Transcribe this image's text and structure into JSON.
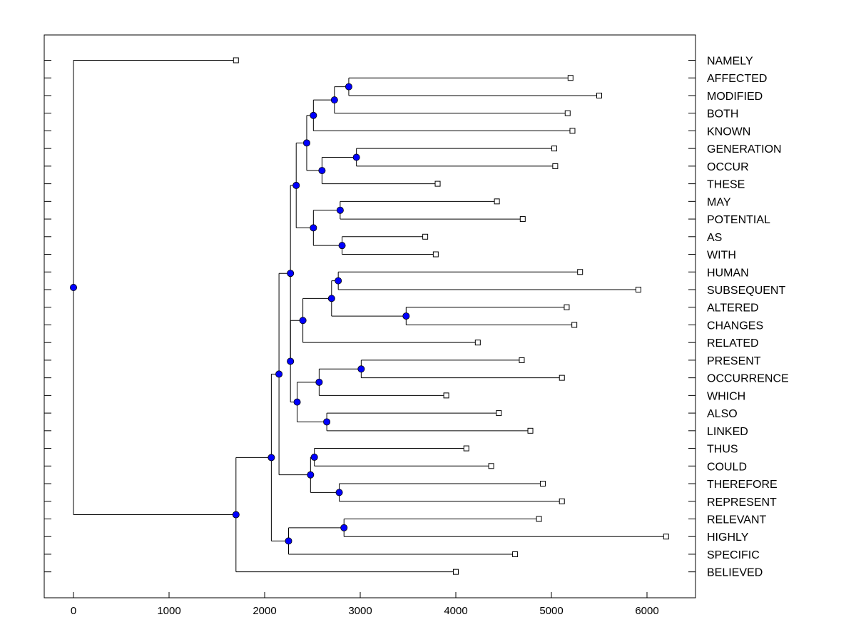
{
  "chart_data": {
    "type": "dendrogram",
    "orientation": "horizontal",
    "x_ticks": [
      0,
      1000,
      2000,
      3000,
      4000,
      5000,
      6000
    ],
    "xlim": [
      -300,
      6500
    ],
    "grid": false,
    "colors": {
      "node": "#0000ff",
      "line": "#000000",
      "leaf_fill": "#ffffff"
    },
    "leaves": [
      {
        "label": "NAMELY",
        "value": 1700
      },
      {
        "label": "AFFECTED",
        "value": 5200
      },
      {
        "label": "MODIFIED",
        "value": 5500
      },
      {
        "label": "BOTH",
        "value": 5170
      },
      {
        "label": "KNOWN",
        "value": 5220
      },
      {
        "label": "GENERATION",
        "value": 5030
      },
      {
        "label": "OCCUR",
        "value": 5040
      },
      {
        "label": "THESE",
        "value": 3810
      },
      {
        "label": "MAY",
        "value": 4430
      },
      {
        "label": "POTENTIAL",
        "value": 4700
      },
      {
        "label": "AS",
        "value": 3680
      },
      {
        "label": "WITH",
        "value": 3790
      },
      {
        "label": "HUMAN",
        "value": 5300
      },
      {
        "label": "SUBSEQUENT",
        "value": 5910
      },
      {
        "label": "ALTERED",
        "value": 5160
      },
      {
        "label": "CHANGES",
        "value": 5240
      },
      {
        "label": "RELATED",
        "value": 4230
      },
      {
        "label": "PRESENT",
        "value": 4690
      },
      {
        "label": "OCCURRENCE",
        "value": 5110
      },
      {
        "label": "WHICH",
        "value": 3900
      },
      {
        "label": "ALSO",
        "value": 4450
      },
      {
        "label": "LINKED",
        "value": 4780
      },
      {
        "label": "THUS",
        "value": 4110
      },
      {
        "label": "COULD",
        "value": 4370
      },
      {
        "label": "THEREFORE",
        "value": 4910
      },
      {
        "label": "REPRESENT",
        "value": 5110
      },
      {
        "label": "RELEVANT",
        "value": 4870
      },
      {
        "label": "HIGHLY",
        "value": 6200
      },
      {
        "label": "SPECIFIC",
        "value": 4620
      },
      {
        "label": "BELIEVED",
        "value": 4000
      }
    ],
    "merges": [
      {
        "height": 2880,
        "children": [
          "L1",
          "L2"
        ]
      },
      {
        "height": 2730,
        "children": [
          "M0",
          "L3"
        ]
      },
      {
        "height": 2510,
        "children": [
          "M1",
          "L4"
        ]
      },
      {
        "height": 2960,
        "children": [
          "L5",
          "L6"
        ]
      },
      {
        "height": 2600,
        "children": [
          "M3",
          "L7"
        ]
      },
      {
        "height": 2440,
        "children": [
          "M2",
          "M4"
        ]
      },
      {
        "height": 2790,
        "children": [
          "L8",
          "L9"
        ]
      },
      {
        "height": 2810,
        "children": [
          "L10",
          "L11"
        ]
      },
      {
        "height": 2510,
        "children": [
          "M6",
          "M7"
        ]
      },
      {
        "height": 2330,
        "children": [
          "M5",
          "M8"
        ]
      },
      {
        "height": 2770,
        "children": [
          "L12",
          "L13"
        ]
      },
      {
        "height": 3480,
        "children": [
          "L14",
          "L15"
        ]
      },
      {
        "height": 2700,
        "children": [
          "M10",
          "M11"
        ]
      },
      {
        "height": 2400,
        "children": [
          "M12",
          "L16"
        ]
      },
      {
        "height": 3010,
        "children": [
          "L17",
          "L18"
        ]
      },
      {
        "height": 2570,
        "children": [
          "M14",
          "L19"
        ]
      },
      {
        "height": 2650,
        "children": [
          "L20",
          "L21"
        ]
      },
      {
        "height": 2340,
        "children": [
          "M15",
          "M16"
        ]
      },
      {
        "height": 2270,
        "children": [
          "M13",
          "M17"
        ]
      },
      {
        "height": 2270,
        "children": [
          "M9",
          "M18"
        ]
      },
      {
        "height": 2520,
        "children": [
          "L22",
          "L23"
        ]
      },
      {
        "height": 2780,
        "children": [
          "L24",
          "L25"
        ]
      },
      {
        "height": 2480,
        "children": [
          "M20",
          "M21"
        ]
      },
      {
        "height": 2150,
        "children": [
          "M19",
          "M22"
        ]
      },
      {
        "height": 2830,
        "children": [
          "L26",
          "L27"
        ]
      },
      {
        "height": 2250,
        "children": [
          "M24",
          "L28"
        ]
      },
      {
        "height": 2070,
        "children": [
          "M23",
          "M25"
        ]
      },
      {
        "height": 1700,
        "children": [
          "M26",
          "L29"
        ]
      },
      {
        "height": 0,
        "children": [
          "L0",
          "M27"
        ]
      }
    ]
  }
}
